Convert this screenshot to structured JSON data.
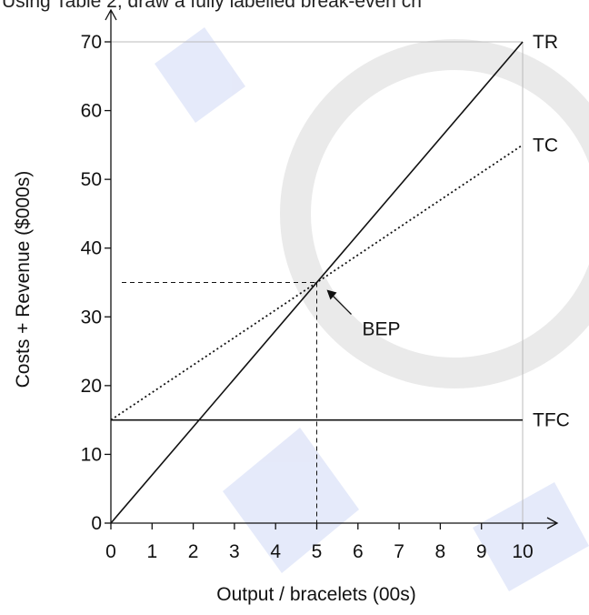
{
  "header": {
    "text": "Using Table 2, draw a fully labelled break-even ch"
  },
  "chart_data": {
    "type": "line",
    "xlabel": "Output / bracelets (00s)",
    "ylabel": "Costs + Revenue ($000s)",
    "xlim": [
      0,
      10
    ],
    "ylim": [
      0,
      70
    ],
    "xticks": [
      0,
      1,
      2,
      3,
      4,
      5,
      6,
      7,
      8,
      9,
      10
    ],
    "yticks": [
      0,
      10,
      20,
      30,
      40,
      50,
      60,
      70
    ],
    "grid": false,
    "series": [
      {
        "name": "TR",
        "style": "solid",
        "x": [
          0,
          10
        ],
        "y": [
          0,
          70
        ]
      },
      {
        "name": "TC",
        "style": "dotted",
        "x": [
          0,
          10
        ],
        "y": [
          15,
          55
        ]
      },
      {
        "name": "TFC",
        "style": "solid",
        "x": [
          0,
          10
        ],
        "y": [
          15,
          15
        ]
      }
    ],
    "annotations": [
      {
        "label": "BEP",
        "x": 5,
        "y": 35
      }
    ]
  },
  "colors": {
    "line": "#111111",
    "axis": "#111111",
    "frame": "#bbbbbb",
    "watermark": "#d0d8f5"
  }
}
